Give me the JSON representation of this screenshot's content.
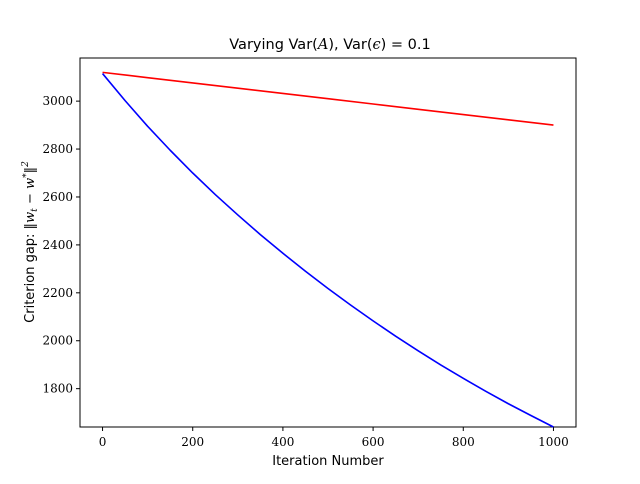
{
  "chart_data": {
    "type": "line",
    "title": {
      "prefix": "Varying Var(",
      "math1": "A",
      "middle": "), Var(",
      "math2": "ϵ",
      "suffix": ") = 0.1"
    },
    "xlabel": "Iteration Number",
    "ylabel": {
      "prefix": "Criterion gap: ",
      "math": "‖w",
      "sub": "t",
      "math_mid": " − w",
      "sup_star": "*",
      "math_end": "‖",
      "sup_2": "2"
    },
    "xlim": [
      -50,
      1050
    ],
    "ylim": [
      1640,
      3180
    ],
    "x_ticks": [
      0,
      200,
      400,
      600,
      800,
      1000
    ],
    "y_ticks": [
      1800,
      2000,
      2200,
      2400,
      2600,
      2800,
      3000
    ],
    "grid": false,
    "legend": "none",
    "series": [
      {
        "color": "#ff0000",
        "points": [
          [
            0,
            3120
          ],
          [
            100,
            3098
          ],
          [
            200,
            3076
          ],
          [
            300,
            3054
          ],
          [
            400,
            3032
          ],
          [
            500,
            3010
          ],
          [
            600,
            2988
          ],
          [
            700,
            2966
          ],
          [
            800,
            2944
          ],
          [
            900,
            2922
          ],
          [
            1000,
            2900
          ]
        ]
      },
      {
        "color": "#0000ff",
        "points": [
          [
            0,
            3115
          ],
          [
            50,
            3002
          ],
          [
            100,
            2895
          ],
          [
            150,
            2795
          ],
          [
            200,
            2700
          ],
          [
            250,
            2610
          ],
          [
            300,
            2525
          ],
          [
            350,
            2443
          ],
          [
            400,
            2365
          ],
          [
            450,
            2290
          ],
          [
            500,
            2218
          ],
          [
            550,
            2149
          ],
          [
            600,
            2083
          ],
          [
            650,
            2019
          ],
          [
            700,
            1958
          ],
          [
            750,
            1899
          ],
          [
            800,
            1843
          ],
          [
            850,
            1789
          ],
          [
            900,
            1737
          ],
          [
            950,
            1688
          ],
          [
            1000,
            1640
          ]
        ]
      }
    ]
  }
}
